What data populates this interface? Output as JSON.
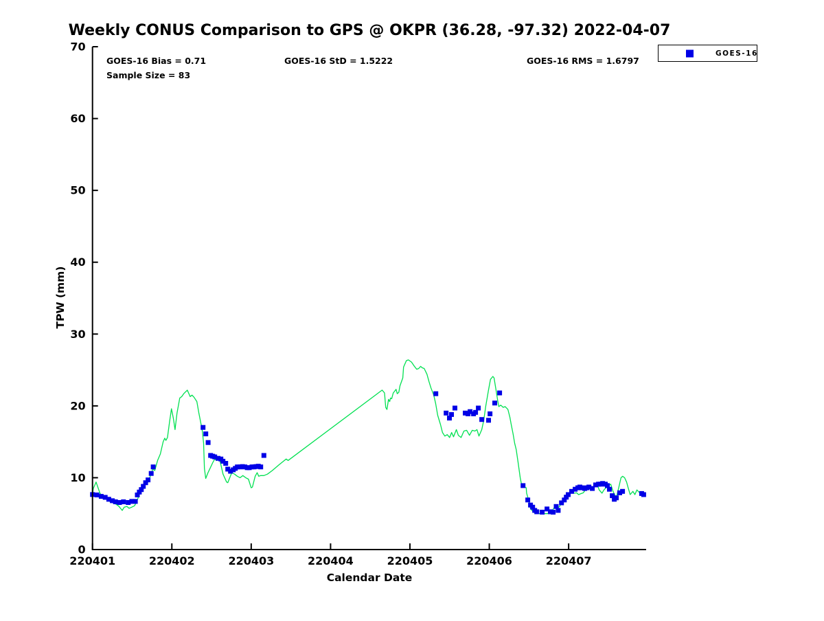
{
  "title": "Weekly CONUS Comparison to GPS @ OKPR (36.28, -97.32) 2022-04-07",
  "annotations": {
    "bias": "GOES-16 Bias = 0.71",
    "std": "GOES-16 StD = 1.5222",
    "rms": "GOES-16 RMS = 1.6797",
    "sample_size": "Sample Size = 83"
  },
  "legend": {
    "label": "GOES-16"
  },
  "colors": {
    "gps_line": "#00e050",
    "goes16_marker": "#0000e6",
    "axis": "#000000",
    "text": "#000000",
    "background": "#ffffff"
  },
  "chart_data": {
    "type": "line",
    "title": "Weekly CONUS Comparison to GPS @ OKPR (36.28, -97.32) 2022-04-07",
    "xlabel": "Calendar Date",
    "ylabel": "TPW (mm)",
    "ylim": [
      0,
      70
    ],
    "y_ticks": [
      0,
      10,
      20,
      30,
      40,
      50,
      60,
      70
    ],
    "x_tick_labels": [
      "220401",
      "220402",
      "220403",
      "220404",
      "220405",
      "220406",
      "220407"
    ],
    "x_tick_days": [
      0,
      1,
      2,
      3,
      4,
      5,
      6
    ],
    "x_range_days": [
      0,
      6.976
    ],
    "grid": false,
    "legend_position": "top-right-outside",
    "series": [
      {
        "name": "GPS",
        "type": "line",
        "color_key": "gps_line",
        "points": [
          [
            0.0,
            7.6
          ],
          [
            0.01,
            8.5
          ],
          [
            0.045,
            9.4
          ],
          [
            0.095,
            7.8
          ],
          [
            0.155,
            7.2
          ],
          [
            0.215,
            6.7
          ],
          [
            0.27,
            6.5
          ],
          [
            0.33,
            6.05
          ],
          [
            0.375,
            5.45
          ],
          [
            0.4,
            5.9
          ],
          [
            0.435,
            6.0
          ],
          [
            0.46,
            5.75
          ],
          [
            0.485,
            5.85
          ],
          [
            0.53,
            6.1
          ],
          [
            0.565,
            6.9
          ],
          [
            0.59,
            7.65
          ],
          [
            0.615,
            8.3
          ],
          [
            0.65,
            8.8
          ],
          [
            0.675,
            9.2
          ],
          [
            0.7,
            9.4
          ],
          [
            0.735,
            10.4
          ],
          [
            0.76,
            11.2
          ],
          [
            0.785,
            11.0
          ],
          [
            0.82,
            12.4
          ],
          [
            0.855,
            13.3
          ],
          [
            0.89,
            15.0
          ],
          [
            0.91,
            15.5
          ],
          [
            0.925,
            15.2
          ],
          [
            0.945,
            15.6
          ],
          [
            0.97,
            17.7
          ],
          [
            0.995,
            19.6
          ],
          [
            1.02,
            18.2
          ],
          [
            1.04,
            16.7
          ],
          [
            1.065,
            19.0
          ],
          [
            1.1,
            21.1
          ],
          [
            1.125,
            21.3
          ],
          [
            1.15,
            21.7
          ],
          [
            1.195,
            22.2
          ],
          [
            1.23,
            21.3
          ],
          [
            1.255,
            21.5
          ],
          [
            1.28,
            21.2
          ],
          [
            1.315,
            20.6
          ],
          [
            1.34,
            19.0
          ],
          [
            1.367,
            17.5
          ],
          [
            1.385,
            16.4
          ],
          [
            1.4,
            14.8
          ],
          [
            1.41,
            11.3
          ],
          [
            1.427,
            9.9
          ],
          [
            1.455,
            10.7
          ],
          [
            1.49,
            11.5
          ],
          [
            1.515,
            12.1
          ],
          [
            1.54,
            12.6
          ],
          [
            1.565,
            12.4
          ],
          [
            1.6,
            12.7
          ],
          [
            1.645,
            10.5
          ],
          [
            1.69,
            9.4
          ],
          [
            1.705,
            9.3
          ],
          [
            1.755,
            10.7
          ],
          [
            1.79,
            10.5
          ],
          [
            1.825,
            10.2
          ],
          [
            1.86,
            10.0
          ],
          [
            1.895,
            10.3
          ],
          [
            1.93,
            10.0
          ],
          [
            1.965,
            9.8
          ],
          [
            2.0,
            8.6
          ],
          [
            2.015,
            8.7
          ],
          [
            2.05,
            10.2
          ],
          [
            2.075,
            10.7
          ],
          [
            2.095,
            10.2
          ],
          [
            2.12,
            10.3
          ],
          [
            2.16,
            10.3
          ],
          [
            2.205,
            10.5
          ],
          [
            2.265,
            11.0
          ],
          [
            2.35,
            11.8
          ],
          [
            2.44,
            12.6
          ],
          [
            2.465,
            12.4
          ],
          [
            3.65,
            22.2
          ],
          [
            3.68,
            21.8
          ],
          [
            3.695,
            19.8
          ],
          [
            3.71,
            19.5
          ],
          [
            3.73,
            20.9
          ],
          [
            3.745,
            20.6
          ],
          [
            3.755,
            21.1
          ],
          [
            3.77,
            21.0
          ],
          [
            3.79,
            21.8
          ],
          [
            3.805,
            22.0
          ],
          [
            3.825,
            22.3
          ],
          [
            3.84,
            21.7
          ],
          [
            3.86,
            21.9
          ],
          [
            3.875,
            22.8
          ],
          [
            3.91,
            23.9
          ],
          [
            3.92,
            25.4
          ],
          [
            3.955,
            26.3
          ],
          [
            3.98,
            26.4
          ],
          [
            4.02,
            26.1
          ],
          [
            4.05,
            25.6
          ],
          [
            4.085,
            25.1
          ],
          [
            4.11,
            25.2
          ],
          [
            4.135,
            25.5
          ],
          [
            4.155,
            25.3
          ],
          [
            4.18,
            25.2
          ],
          [
            4.215,
            24.4
          ],
          [
            4.24,
            23.4
          ],
          [
            4.265,
            22.5
          ],
          [
            4.3,
            21.5
          ],
          [
            4.325,
            20.3
          ],
          [
            4.35,
            18.7
          ],
          [
            4.385,
            17.4
          ],
          [
            4.41,
            16.3
          ],
          [
            4.44,
            15.8
          ],
          [
            4.47,
            16.0
          ],
          [
            4.5,
            15.6
          ],
          [
            4.525,
            16.3
          ],
          [
            4.55,
            15.7
          ],
          [
            4.585,
            16.7
          ],
          [
            4.61,
            15.9
          ],
          [
            4.645,
            15.6
          ],
          [
            4.68,
            16.5
          ],
          [
            4.715,
            16.6
          ],
          [
            4.75,
            15.9
          ],
          [
            4.785,
            16.6
          ],
          [
            4.82,
            16.5
          ],
          [
            4.845,
            16.7
          ],
          [
            4.87,
            15.8
          ],
          [
            4.905,
            16.7
          ],
          [
            4.93,
            18.0
          ],
          [
            4.955,
            19.9
          ],
          [
            4.99,
            22.2
          ],
          [
            5.015,
            23.7
          ],
          [
            5.045,
            24.1
          ],
          [
            5.06,
            23.9
          ],
          [
            5.085,
            22.2
          ],
          [
            5.105,
            20.8
          ],
          [
            5.12,
            19.9
          ],
          [
            5.145,
            20.1
          ],
          [
            5.175,
            19.8
          ],
          [
            5.2,
            19.9
          ],
          [
            5.235,
            19.5
          ],
          [
            5.26,
            18.4
          ],
          [
            5.275,
            17.5
          ],
          [
            5.3,
            16.1
          ],
          [
            5.32,
            14.8
          ],
          [
            5.34,
            13.9
          ],
          [
            5.365,
            12.0
          ],
          [
            5.39,
            10.0
          ],
          [
            5.405,
            9.1
          ],
          [
            5.435,
            8.8
          ],
          [
            5.465,
            8.6
          ],
          [
            5.47,
            7.85
          ],
          [
            5.495,
            6.9
          ],
          [
            5.52,
            5.7
          ],
          [
            5.555,
            5.25
          ],
          [
            5.58,
            5.05
          ],
          [
            5.605,
            5.0
          ],
          [
            5.665,
            5.0
          ],
          [
            5.735,
            5.0
          ],
          [
            5.77,
            5.3
          ],
          [
            5.795,
            5.4
          ],
          [
            5.82,
            5.9
          ],
          [
            5.855,
            5.7
          ],
          [
            5.885,
            6.0
          ],
          [
            5.91,
            6.5
          ],
          [
            5.945,
            7.0
          ],
          [
            5.97,
            7.3
          ],
          [
            5.995,
            7.65
          ],
          [
            6.03,
            7.9
          ],
          [
            6.075,
            7.85
          ],
          [
            6.1,
            7.9
          ],
          [
            6.125,
            7.65
          ],
          [
            6.16,
            7.8
          ],
          [
            6.185,
            7.9
          ],
          [
            6.21,
            8.3
          ],
          [
            6.245,
            8.4
          ],
          [
            6.27,
            8.5
          ],
          [
            6.3,
            8.7
          ],
          [
            6.335,
            8.9
          ],
          [
            6.36,
            9.1
          ],
          [
            6.385,
            8.3
          ],
          [
            6.42,
            7.85
          ],
          [
            6.445,
            8.3
          ],
          [
            6.47,
            8.6
          ],
          [
            6.505,
            8.9
          ],
          [
            6.53,
            9.1
          ],
          [
            6.56,
            8.1
          ],
          [
            6.59,
            7.4
          ],
          [
            6.6,
            7.2
          ],
          [
            6.635,
            8.8
          ],
          [
            6.66,
            10.0
          ],
          [
            6.68,
            10.2
          ],
          [
            6.705,
            10.0
          ],
          [
            6.73,
            9.4
          ],
          [
            6.75,
            8.6
          ],
          [
            6.775,
            7.65
          ],
          [
            6.81,
            8.1
          ],
          [
            6.835,
            7.65
          ],
          [
            6.86,
            8.3
          ],
          [
            6.895,
            7.9
          ],
          [
            6.905,
            7.65
          ],
          [
            6.94,
            7.9
          ],
          [
            6.965,
            7.85
          ]
        ]
      },
      {
        "name": "GOES-16",
        "type": "scatter",
        "color_key": "goes16_marker",
        "points": [
          [
            0.0,
            7.66
          ],
          [
            0.055,
            7.6
          ],
          [
            0.11,
            7.4
          ],
          [
            0.16,
            7.27
          ],
          [
            0.205,
            7.0
          ],
          [
            0.25,
            6.8
          ],
          [
            0.29,
            6.65
          ],
          [
            0.34,
            6.55
          ],
          [
            0.39,
            6.65
          ],
          [
            0.45,
            6.55
          ],
          [
            0.495,
            6.7
          ],
          [
            0.54,
            6.7
          ],
          [
            0.565,
            7.6
          ],
          [
            0.59,
            8.0
          ],
          [
            0.615,
            8.35
          ],
          [
            0.64,
            8.8
          ],
          [
            0.67,
            9.3
          ],
          [
            0.7,
            9.7
          ],
          [
            0.74,
            10.6
          ],
          [
            0.765,
            11.5
          ],
          [
            1.393,
            17.0
          ],
          [
            1.428,
            16.1
          ],
          [
            1.457,
            14.9
          ],
          [
            1.488,
            13.1
          ],
          [
            1.514,
            13.0
          ],
          [
            1.54,
            12.9
          ],
          [
            1.583,
            12.7
          ],
          [
            1.618,
            12.6
          ],
          [
            1.644,
            12.3
          ],
          [
            1.679,
            12.0
          ],
          [
            1.705,
            11.2
          ],
          [
            1.739,
            10.9
          ],
          [
            1.774,
            11.1
          ],
          [
            1.8,
            11.3
          ],
          [
            1.826,
            11.5
          ],
          [
            1.86,
            11.5
          ],
          [
            1.89,
            11.55
          ],
          [
            1.92,
            11.5
          ],
          [
            1.95,
            11.4
          ],
          [
            1.975,
            11.4
          ],
          [
            2.01,
            11.5
          ],
          [
            2.035,
            11.5
          ],
          [
            2.06,
            11.55
          ],
          [
            2.09,
            11.6
          ],
          [
            2.12,
            11.5
          ],
          [
            2.16,
            13.1
          ],
          [
            4.326,
            21.7
          ],
          [
            4.456,
            19.0
          ],
          [
            4.498,
            18.3
          ],
          [
            4.524,
            18.8
          ],
          [
            4.567,
            19.7
          ],
          [
            4.697,
            19.0
          ],
          [
            4.732,
            18.9
          ],
          [
            4.758,
            19.2
          ],
          [
            4.801,
            18.9
          ],
          [
            4.827,
            19.1
          ],
          [
            4.862,
            19.7
          ],
          [
            4.905,
            18.1
          ],
          [
            4.991,
            18.0
          ],
          [
            5.009,
            18.9
          ],
          [
            5.069,
            20.4
          ],
          [
            5.13,
            21.8
          ],
          [
            5.425,
            8.9
          ],
          [
            5.485,
            6.9
          ],
          [
            5.52,
            6.2
          ],
          [
            5.546,
            5.9
          ],
          [
            5.572,
            5.45
          ],
          [
            5.598,
            5.26
          ],
          [
            5.667,
            5.2
          ],
          [
            5.727,
            5.65
          ],
          [
            5.77,
            5.26
          ],
          [
            5.805,
            5.2
          ],
          [
            5.843,
            6.0
          ],
          [
            5.868,
            5.45
          ],
          [
            5.91,
            6.5
          ],
          [
            5.945,
            6.9
          ],
          [
            5.97,
            7.3
          ],
          [
            5.995,
            7.65
          ],
          [
            6.038,
            8.1
          ],
          [
            6.082,
            8.4
          ],
          [
            6.116,
            8.6
          ],
          [
            6.142,
            8.7
          ],
          [
            6.168,
            8.6
          ],
          [
            6.203,
            8.5
          ],
          [
            6.229,
            8.6
          ],
          [
            6.255,
            8.7
          ],
          [
            6.298,
            8.5
          ],
          [
            6.341,
            9.0
          ],
          [
            6.376,
            9.1
          ],
          [
            6.402,
            9.1
          ],
          [
            6.428,
            9.2
          ],
          [
            6.462,
            9.1
          ],
          [
            6.488,
            8.9
          ],
          [
            6.514,
            8.4
          ],
          [
            6.549,
            7.5
          ],
          [
            6.575,
            7.0
          ],
          [
            6.601,
            7.2
          ],
          [
            6.644,
            7.9
          ],
          [
            6.679,
            8.1
          ],
          [
            6.92,
            7.8
          ],
          [
            6.946,
            7.65
          ]
        ]
      }
    ]
  }
}
